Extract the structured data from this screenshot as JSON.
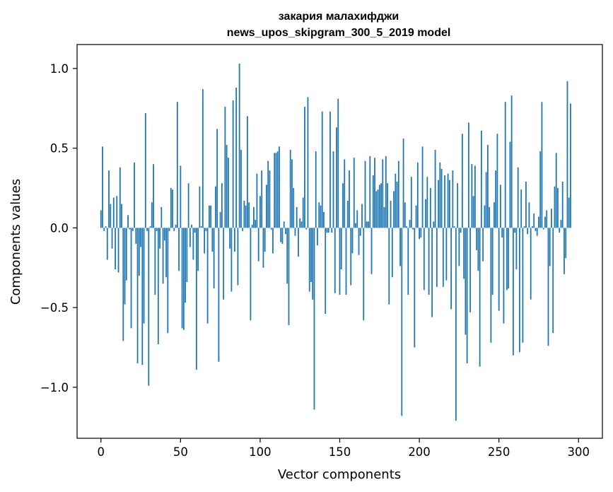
{
  "chart_data": {
    "type": "bar",
    "title": [
      "закария малахифджи",
      "news_upos_skipgram_300_5_2019 model"
    ],
    "xlabel": "Vector components",
    "ylabel": "Components values",
    "xlim": [
      -15,
      315
    ],
    "ylim": [
      -1.32,
      1.15
    ],
    "xticks": [
      0,
      50,
      100,
      150,
      200,
      250,
      300
    ],
    "xtick_labels": [
      "0",
      "50",
      "100",
      "150",
      "200",
      "250",
      "300"
    ],
    "yticks": [
      -1.0,
      -0.5,
      0.0,
      0.5,
      1.0
    ],
    "ytick_labels": [
      "−1.0",
      "−0.5",
      "0.0",
      "0.5",
      "1.0"
    ],
    "grid": false,
    "legend": "none",
    "bar_color": "#1f77b4",
    "series": [
      {
        "values": [
          0.11,
          0.51,
          -0.02,
          0.01,
          -0.2,
          0.36,
          0.15,
          -0.13,
          0.19,
          -0.26,
          0.2,
          -0.28,
          0.38,
          0.15,
          -0.71,
          -0.48,
          -0.33,
          0.08,
          -0.01,
          -0.63,
          -0.02,
          0.41,
          -0.1,
          -0.85,
          -0.3,
          -0.12,
          -0.86,
          -0.6,
          0.72,
          -0.02,
          -0.99,
          0.01,
          0.16,
          0.4,
          -0.42,
          -0.02,
          -0.73,
          -0.13,
          0.13,
          -0.35,
          -0.08,
          -0.31,
          -0.66,
          -0.02,
          0.25,
          0.24,
          -0.02,
          0.02,
          0.79,
          -0.27,
          0.39,
          -0.63,
          -0.64,
          -0.47,
          -0.34,
          0.28,
          -0.12,
          0.02,
          -0.2,
          -0.03,
          -0.89,
          -0.27,
          0.26,
          0.01,
          0.87,
          -0.16,
          -0.02,
          -0.6,
          0.14,
          0.14,
          -0.15,
          -0.38,
          0.26,
          0.62,
          -0.84,
          0.1,
          0.28,
          -0.45,
          0.76,
          0.52,
          0.44,
          -0.13,
          -0.4,
          0.8,
          -0.15,
          0.88,
          -0.36,
          1.03,
          0.49,
          -0.02,
          0.17,
          0.14,
          0.7,
          0.16,
          -0.58,
          0.02,
          0.13,
          0.05,
          0.34,
          -0.21,
          0.2,
          0.36,
          -0.25,
          -0.15,
          0.27,
          0.42,
          0.36,
          -0.01,
          -0.16,
          0.47,
          0.47,
          0.48,
          0.51,
          -0.09,
          -0.1,
          0.04,
          -0.04,
          -0.35,
          -0.61,
          0.49,
          0.43,
          0.25,
          -0.05,
          0.13,
          -0.18,
          0.06,
          0.04,
          0.19,
          0.76,
          -0.01,
          0.82,
          -0.4,
          -0.34,
          -0.45,
          -1.14,
          0.48,
          -0.11,
          0.16,
          0.14,
          0.73,
          0.1,
          -0.54,
          -0.03,
          -0.03,
          0.73,
          -0.03,
          0.48,
          -0.41,
          0.63,
          0.81,
          -0.42,
          -0.26,
          0.28,
          0.43,
          -0.42,
          0.17,
          0.36,
          -0.36,
          -0.16,
          0.44,
          0.03,
          0.11,
          -0.17,
          -0.05,
          0.15,
          -0.58,
          0.42,
          0.04,
          0.04,
          0.45,
          -0.29,
          0.33,
          0.44,
          0.23,
          0.24,
          0.27,
          0.28,
          0.43,
          0.13,
          0.45,
          0.28,
          -0.48,
          0.17,
          -0.31,
          0.23,
          0.34,
          0.29,
          0.42,
          -0.24,
          -1.18,
          0.56,
          0.16,
          0.01,
          -0.42,
          0.05,
          0.32,
          -0.01,
          -0.75,
          0.14,
          0.41,
          -0.07,
          -0.06,
          0.51,
          -0.39,
          0.18,
          0.32,
          -0.42,
          0.25,
          -0.56,
          0.04,
          0.49,
          -0.37,
          0.3,
          0.41,
          0.37,
          -0.37,
          0.33,
          -0.33,
          0.34,
          0.3,
          -0.51,
          0.36,
          0.01,
          -1.21,
          0.28,
          -0.24,
          -0.03,
          0.59,
          -0.32,
          -0.67,
          -0.85,
          0.66,
          -0.53,
          0.4,
          0.2,
          0.39,
          -0.14,
          -0.27,
          -0.87,
          0.61,
          -0.21,
          0.14,
          0.35,
          0.52,
          0.13,
          -0.72,
          -0.42,
          0.16,
          0.36,
          0.59,
          -0.52,
          0.27,
          -0.06,
          -0.6,
          0.79,
          -0.39,
          -0.38,
          0.54,
          0.83,
          -0.8,
          -0.03,
          -0.26,
          0.38,
          -0.78,
          0.24,
          -0.72,
          0.01,
          0.29,
          -0.04,
          0.16,
          -0.45,
          0.01,
          0.09,
          -0.02,
          -0.05,
          0.07,
          0.48,
          0.79,
          -0.01,
          0.07,
          0.11,
          -0.74,
          -0.24,
          0.12,
          -0.66,
          0.26,
          0.47,
          0.25,
          -0.03,
          0.05,
          0.29,
          -0.29,
          -0.19,
          0.92,
          0.19,
          0.78
        ]
      }
    ]
  }
}
